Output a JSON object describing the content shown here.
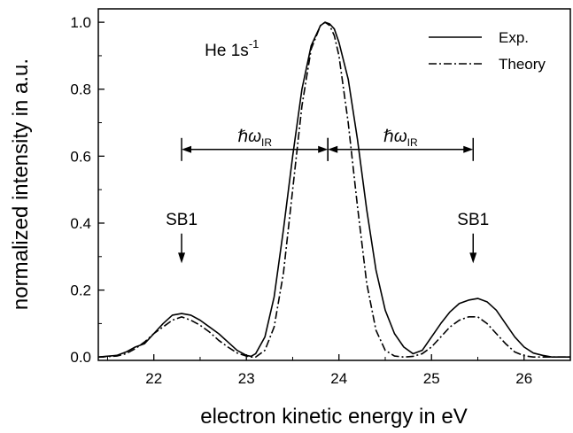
{
  "chart_data": {
    "type": "line",
    "title": "",
    "xlabel": "electron kinetic energy in eV",
    "ylabel": "normalized intensity in a.u.",
    "xlim": [
      21.4,
      26.5
    ],
    "ylim": [
      -0.01,
      1.04
    ],
    "xticks": [
      "22",
      "23",
      "24",
      "25",
      "26"
    ],
    "yticks": [
      "0.0",
      "0.2",
      "0.4",
      "0.6",
      "0.8",
      "1.0"
    ],
    "legend_position": "top-right",
    "grid": false,
    "series": [
      {
        "name": "Exp.",
        "style": "solid",
        "x": [
          21.4,
          21.6,
          21.7,
          21.8,
          21.9,
          22.0,
          22.1,
          22.2,
          22.3,
          22.4,
          22.5,
          22.6,
          22.7,
          22.8,
          22.9,
          23.0,
          23.05,
          23.1,
          23.2,
          23.3,
          23.4,
          23.5,
          23.6,
          23.7,
          23.8,
          23.85,
          23.9,
          23.95,
          24.0,
          24.1,
          24.2,
          24.3,
          24.4,
          24.5,
          24.6,
          24.7,
          24.8,
          24.9,
          25.0,
          25.1,
          25.2,
          25.3,
          25.4,
          25.5,
          25.6,
          25.7,
          25.8,
          25.9,
          26.0,
          26.1,
          26.2,
          26.3,
          26.5
        ],
        "y": [
          0.0,
          0.005,
          0.015,
          0.03,
          0.04,
          0.07,
          0.1,
          0.125,
          0.13,
          0.125,
          0.11,
          0.09,
          0.07,
          0.045,
          0.02,
          0.005,
          0.002,
          0.01,
          0.06,
          0.18,
          0.38,
          0.6,
          0.8,
          0.93,
          0.99,
          1.0,
          0.995,
          0.98,
          0.94,
          0.83,
          0.65,
          0.44,
          0.26,
          0.14,
          0.07,
          0.03,
          0.01,
          0.02,
          0.06,
          0.1,
          0.135,
          0.16,
          0.17,
          0.175,
          0.165,
          0.14,
          0.1,
          0.06,
          0.03,
          0.012,
          0.005,
          0.0,
          0.0
        ]
      },
      {
        "name": "Theory",
        "style": "dash-dot",
        "x": [
          21.4,
          21.6,
          21.7,
          21.8,
          21.9,
          22.0,
          22.1,
          22.2,
          22.3,
          22.4,
          22.5,
          22.6,
          22.7,
          22.8,
          22.9,
          23.0,
          23.05,
          23.1,
          23.2,
          23.3,
          23.4,
          23.5,
          23.6,
          23.7,
          23.8,
          23.85,
          23.9,
          23.95,
          24.0,
          24.1,
          24.2,
          24.3,
          24.4,
          24.5,
          24.6,
          24.7,
          24.8,
          24.9,
          25.0,
          25.1,
          25.2,
          25.3,
          25.4,
          25.5,
          25.6,
          25.7,
          25.8,
          25.9,
          26.0,
          26.1,
          26.2,
          26.3,
          26.5
        ],
        "y": [
          0.0,
          0.003,
          0.01,
          0.025,
          0.045,
          0.07,
          0.09,
          0.11,
          0.12,
          0.11,
          0.095,
          0.075,
          0.05,
          0.03,
          0.012,
          0.003,
          0.0,
          0.0,
          0.02,
          0.09,
          0.25,
          0.5,
          0.75,
          0.92,
          0.99,
          1.0,
          0.99,
          0.96,
          0.9,
          0.7,
          0.45,
          0.22,
          0.08,
          0.02,
          0.003,
          0.0,
          0.002,
          0.01,
          0.03,
          0.06,
          0.09,
          0.11,
          0.12,
          0.12,
          0.1,
          0.07,
          0.04,
          0.015,
          0.004,
          0.0,
          0.0,
          0.0,
          0.0
        ]
      }
    ],
    "annotations": {
      "species_main": "He 1s",
      "species_sup": "-1",
      "sb_label": "SB1",
      "sb_positions": [
        {
          "x": 22.3,
          "y_from": 0.39,
          "y_to": 0.28
        },
        {
          "x": 25.45,
          "y_from": 0.39,
          "y_to": 0.28
        }
      ],
      "hbar_symbol": "ℏω",
      "hbar_sub": "IR",
      "spacing_arrows": [
        {
          "x_from": 22.3,
          "x_to": 23.88,
          "y": 0.62
        },
        {
          "x_from": 23.88,
          "x_to": 25.45,
          "y": 0.62
        }
      ]
    }
  }
}
